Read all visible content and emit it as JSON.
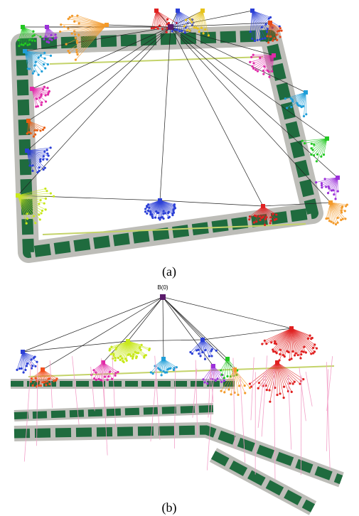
{
  "panels": [
    {
      "caption": "(a)"
    },
    {
      "caption": "(b)",
      "root_label": "B(0)"
    }
  ]
}
